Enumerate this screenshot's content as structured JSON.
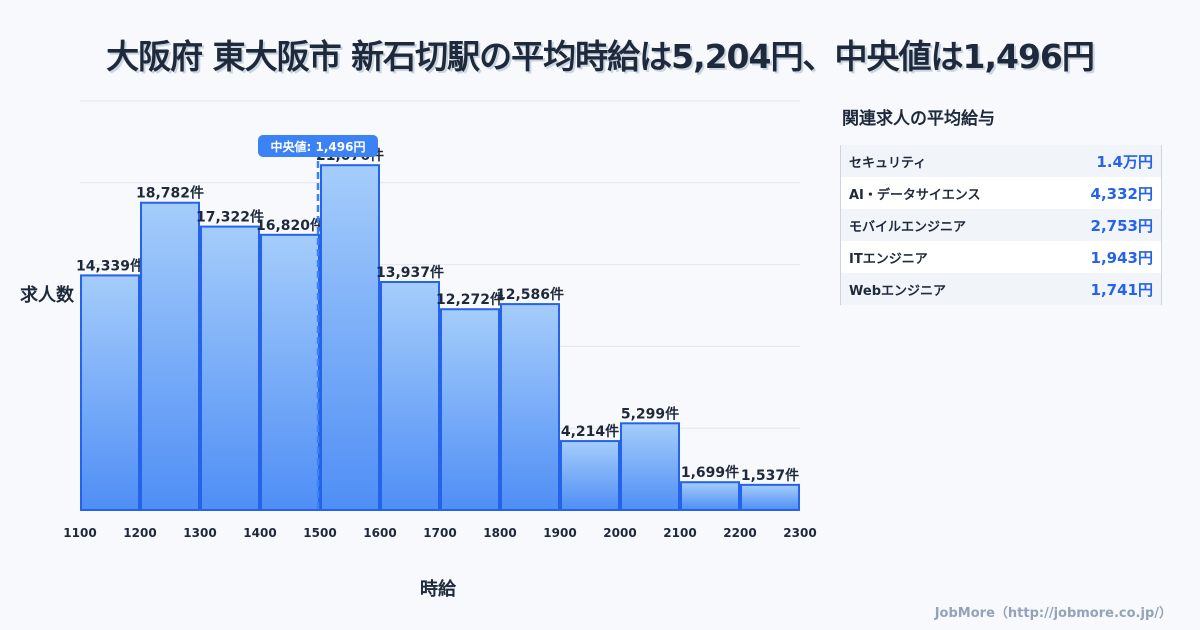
{
  "title": "大阪府 東大阪市 新石切駅の平均時給は5,204円、中央値は1,496円",
  "chart_data": {
    "type": "bar",
    "title": "大阪府 東大阪市 新石切駅の平均時給は5,204円、中央値は1,496円",
    "xlabel": "時給",
    "ylabel": "求人数",
    "bin_edges": [
      1100,
      1200,
      1300,
      1400,
      1500,
      1600,
      1700,
      1800,
      1900,
      2000,
      2100,
      2200,
      2300
    ],
    "values": [
      14339,
      18782,
      17322,
      16820,
      21076,
      13937,
      12272,
      12586,
      4214,
      5299,
      1699,
      1537
    ],
    "labels": [
      "14,339件",
      "18,782件",
      "17,322件",
      "16,820件",
      "21,076件",
      "13,937件",
      "12,272件",
      "12,586件",
      "4,214件",
      "5,299件",
      "1,699件",
      "1,537件"
    ],
    "ylim": [
      0,
      25000
    ],
    "grid": true,
    "median": {
      "value": 1496,
      "label": "中央値: 1,496円"
    }
  },
  "side": {
    "title": "関連求人の平均給与",
    "items": [
      {
        "name": "セキュリティ",
        "value": "1.4万円"
      },
      {
        "name": "AI・データサイエンス",
        "value": "4,332円"
      },
      {
        "name": "モバイルエンジニア",
        "value": "2,753円"
      },
      {
        "name": "ITエンジニア",
        "value": "1,943円"
      },
      {
        "name": "Webエンジニア",
        "value": "1,741円"
      }
    ]
  },
  "footer": "JobMore（http://jobmore.co.jp/）"
}
